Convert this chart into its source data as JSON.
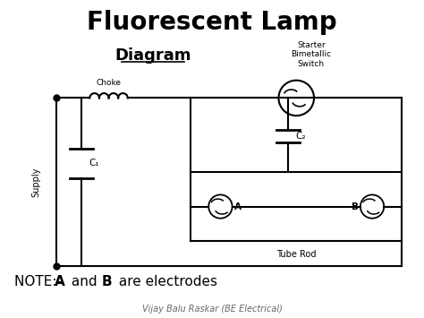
{
  "title": "Fluorescent Lamp",
  "subtitle": "Diagram",
  "footer": "Vijay Balu Raskar (BE Electrical)",
  "bg_color": "#ffffff",
  "line_color": "#000000",
  "title_fontsize": 20,
  "subtitle_fontsize": 13,
  "note_fontsize": 11,
  "footer_fontsize": 7,
  "labels": {
    "choke": "Choke",
    "supply": "Supply",
    "c1": "C₁",
    "c2": "C₂",
    "A": "A",
    "B": "B",
    "tube_rod": "Tube Rod",
    "starter": "Starter\nBimetallic\nSwitch"
  }
}
